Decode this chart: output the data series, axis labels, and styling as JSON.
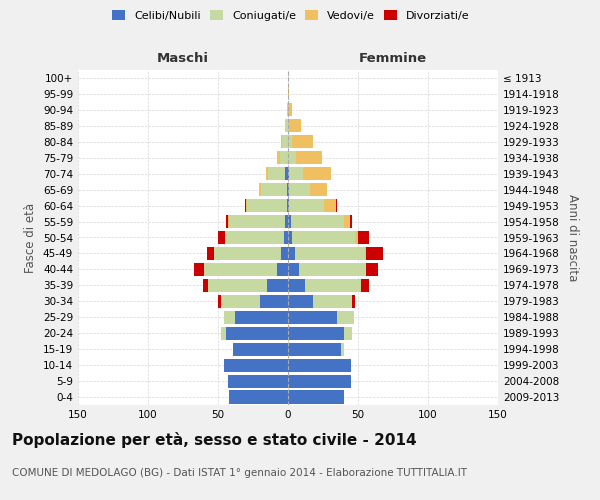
{
  "age_groups_bottom_to_top": [
    "0-4",
    "5-9",
    "10-14",
    "15-19",
    "20-24",
    "25-29",
    "30-34",
    "35-39",
    "40-44",
    "45-49",
    "50-54",
    "55-59",
    "60-64",
    "65-69",
    "70-74",
    "75-79",
    "80-84",
    "85-89",
    "90-94",
    "95-99",
    "100+"
  ],
  "birth_years_bottom_to_top": [
    "2009-2013",
    "2004-2008",
    "1999-2003",
    "1994-1998",
    "1989-1993",
    "1984-1988",
    "1979-1983",
    "1974-1978",
    "1969-1973",
    "1964-1968",
    "1959-1963",
    "1954-1958",
    "1949-1953",
    "1944-1948",
    "1939-1943",
    "1934-1938",
    "1929-1933",
    "1924-1928",
    "1919-1923",
    "1914-1918",
    "≤ 1913"
  ],
  "male": {
    "celibi": [
      42,
      43,
      46,
      39,
      44,
      38,
      20,
      15,
      8,
      5,
      3,
      2,
      1,
      1,
      2,
      0,
      0,
      0,
      0,
      0,
      0
    ],
    "coniugati": [
      0,
      0,
      0,
      0,
      4,
      8,
      28,
      42,
      52,
      48,
      42,
      40,
      28,
      18,
      12,
      6,
      4,
      2,
      1,
      0,
      0
    ],
    "vedovi": [
      0,
      0,
      0,
      0,
      0,
      0,
      0,
      0,
      0,
      0,
      0,
      1,
      1,
      2,
      2,
      2,
      1,
      0,
      0,
      0,
      0
    ],
    "divorziati": [
      0,
      0,
      0,
      0,
      0,
      0,
      2,
      4,
      7,
      5,
      5,
      1,
      1,
      0,
      0,
      0,
      0,
      0,
      0,
      0,
      0
    ]
  },
  "female": {
    "nubili": [
      40,
      45,
      45,
      38,
      40,
      35,
      18,
      12,
      8,
      5,
      3,
      2,
      1,
      1,
      1,
      0,
      0,
      0,
      0,
      0,
      0
    ],
    "coniugate": [
      0,
      0,
      0,
      2,
      6,
      12,
      28,
      40,
      48,
      50,
      45,
      38,
      25,
      15,
      10,
      6,
      3,
      1,
      0,
      0,
      0
    ],
    "vedove": [
      0,
      0,
      0,
      0,
      0,
      0,
      0,
      0,
      0,
      1,
      2,
      4,
      8,
      12,
      20,
      18,
      15,
      8,
      3,
      1,
      0
    ],
    "divorziate": [
      0,
      0,
      0,
      0,
      0,
      0,
      2,
      6,
      8,
      12,
      8,
      2,
      1,
      0,
      0,
      0,
      0,
      0,
      0,
      0,
      0
    ]
  },
  "colors": {
    "celibi": "#4472c4",
    "coniugati": "#c5d9a0",
    "vedovi": "#f0c060",
    "divorziati": "#cc0000"
  },
  "xlim": 150,
  "title": "Popolazione per età, sesso e stato civile - 2014",
  "subtitle": "COMUNE DI MEDOLAGO (BG) - Dati ISTAT 1° gennaio 2014 - Elaborazione TUTTITALIA.IT",
  "xlabel_left": "Maschi",
  "xlabel_right": "Femmine",
  "ylabel_left": "Fasce di età",
  "ylabel_right": "Anni di nascita",
  "legend_labels": [
    "Celibi/Nubili",
    "Coniugati/e",
    "Vedovi/e",
    "Divorziati/e"
  ],
  "bg_color": "#f0f0f0",
  "plot_bg": "#ffffff",
  "grid_color": "#cccccc",
  "title_fontsize": 11,
  "subtitle_fontsize": 7.5,
  "tick_fontsize": 7.5,
  "label_fontsize": 8.5
}
